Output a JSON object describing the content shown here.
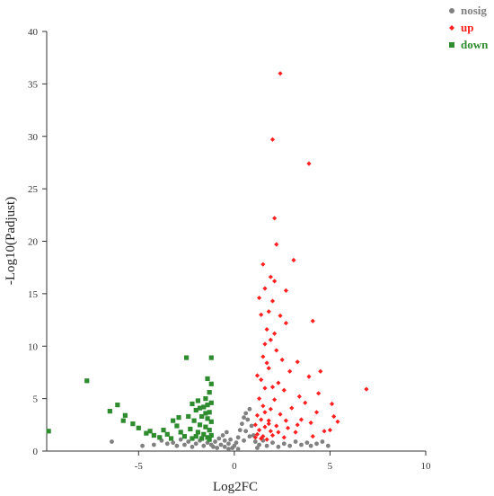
{
  "chart_data": {
    "type": "scatter",
    "title": "",
    "xlabel": "Log2FC",
    "ylabel": "-Log10(Padjust)",
    "xlim": [
      -9.8,
      10
    ],
    "ylim": [
      0,
      40
    ],
    "x_ticks": [
      -5,
      0,
      5,
      10
    ],
    "y_ticks": [
      0,
      5,
      10,
      15,
      20,
      25,
      30,
      35,
      40
    ],
    "grid": false,
    "legend_position": "top-right",
    "series": [
      {
        "name": "nosig",
        "color": "#808080",
        "marker": "circle",
        "points": [
          [
            -6.4,
            0.9
          ],
          [
            -4.8,
            0.5
          ],
          [
            -4.2,
            0.6
          ],
          [
            -3.8,
            1.0
          ],
          [
            -3.5,
            0.7
          ],
          [
            -3.2,
            0.8
          ],
          [
            -3.0,
            0.5
          ],
          [
            -2.8,
            1.1
          ],
          [
            -2.6,
            0.6
          ],
          [
            -2.4,
            0.9
          ],
          [
            -2.2,
            0.4
          ],
          [
            -2.0,
            0.7
          ],
          [
            -1.8,
            1.0
          ],
          [
            -1.6,
            0.5
          ],
          [
            -1.4,
            0.8
          ],
          [
            -1.2,
            0.6
          ],
          [
            -1.0,
            0.9
          ],
          [
            -0.9,
            0.3
          ],
          [
            -0.8,
            1.2
          ],
          [
            -0.7,
            0.6
          ],
          [
            -0.6,
            1.5
          ],
          [
            -0.5,
            0.4
          ],
          [
            -0.4,
            1.8
          ],
          [
            -0.3,
            0.7
          ],
          [
            -0.2,
            1.1
          ],
          [
            -0.1,
            0.3
          ],
          [
            0.0,
            0.5
          ],
          [
            0.1,
            0.8
          ],
          [
            0.2,
            1.3
          ],
          [
            0.3,
            2.0
          ],
          [
            0.4,
            2.6
          ],
          [
            0.5,
            3.2
          ],
          [
            0.6,
            3.6
          ],
          [
            0.7,
            3.0
          ],
          [
            0.8,
            4.0
          ],
          [
            0.9,
            2.4
          ],
          [
            1.0,
            1.5
          ],
          [
            1.1,
            0.9
          ],
          [
            1.3,
            0.6
          ],
          [
            1.5,
            1.0
          ],
          [
            1.7,
            0.5
          ],
          [
            2.0,
            0.8
          ],
          [
            2.3,
            0.4
          ],
          [
            2.6,
            0.7
          ],
          [
            2.9,
            0.5
          ],
          [
            3.2,
            0.9
          ],
          [
            3.5,
            0.6
          ],
          [
            3.8,
            0.8
          ],
          [
            4.0,
            0.5
          ],
          [
            4.3,
            0.7
          ],
          [
            4.6,
            0.9
          ],
          [
            4.9,
            0.5
          ],
          [
            -0.5,
            1.0
          ],
          [
            0.5,
            1.0
          ],
          [
            0.6,
            1.9
          ],
          [
            0.2,
            0.2
          ],
          [
            -0.3,
            0.2
          ],
          [
            0.8,
            1.4
          ],
          [
            -1.1,
            0.4
          ],
          [
            1.2,
            0.3
          ]
        ]
      },
      {
        "name": "up",
        "color": "#ff2020",
        "marker": "diamond",
        "points": [
          [
            2.4,
            36.0
          ],
          [
            2.0,
            29.7
          ],
          [
            3.9,
            27.4
          ],
          [
            2.1,
            22.2
          ],
          [
            2.2,
            19.7
          ],
          [
            1.5,
            17.8
          ],
          [
            3.1,
            18.2
          ],
          [
            1.9,
            16.6
          ],
          [
            2.1,
            16.2
          ],
          [
            1.6,
            15.5
          ],
          [
            2.7,
            15.3
          ],
          [
            1.3,
            14.6
          ],
          [
            2.0,
            14.3
          ],
          [
            1.8,
            13.3
          ],
          [
            1.4,
            13.0
          ],
          [
            2.4,
            12.9
          ],
          [
            4.1,
            12.4
          ],
          [
            2.7,
            12.2
          ],
          [
            1.7,
            11.6
          ],
          [
            2.1,
            11.2
          ],
          [
            1.6,
            10.2
          ],
          [
            1.9,
            10.6
          ],
          [
            2.2,
            9.6
          ],
          [
            1.5,
            9.0
          ],
          [
            2.5,
            8.7
          ],
          [
            1.7,
            8.4
          ],
          [
            3.3,
            8.5
          ],
          [
            1.8,
            7.9
          ],
          [
            2.9,
            7.6
          ],
          [
            4.5,
            7.6
          ],
          [
            1.2,
            7.2
          ],
          [
            3.9,
            7.1
          ],
          [
            1.4,
            6.8
          ],
          [
            2.3,
            6.5
          ],
          [
            2.0,
            6.1
          ],
          [
            1.6,
            6.0
          ],
          [
            2.6,
            5.8
          ],
          [
            4.4,
            5.5
          ],
          [
            3.4,
            5.2
          ],
          [
            1.3,
            5.0
          ],
          [
            2.1,
            4.9
          ],
          [
            3.7,
            4.6
          ],
          [
            5.1,
            4.5
          ],
          [
            1.5,
            4.3
          ],
          [
            1.9,
            4.0
          ],
          [
            3.0,
            4.1
          ],
          [
            6.9,
            5.9
          ],
          [
            4.3,
            3.7
          ],
          [
            1.2,
            3.4
          ],
          [
            2.4,
            3.5
          ],
          [
            5.2,
            3.3
          ],
          [
            1.4,
            3.0
          ],
          [
            1.8,
            2.9
          ],
          [
            3.5,
            3.0
          ],
          [
            4.0,
            2.7
          ],
          [
            5.4,
            2.8
          ],
          [
            1.1,
            2.5
          ],
          [
            1.6,
            2.3
          ],
          [
            2.2,
            2.4
          ],
          [
            2.8,
            2.2
          ],
          [
            1.3,
            2.0
          ],
          [
            1.9,
            1.9
          ],
          [
            3.2,
            1.8
          ],
          [
            4.7,
            1.9
          ],
          [
            1.2,
            1.6
          ],
          [
            1.5,
            1.4
          ],
          [
            2.0,
            1.5
          ],
          [
            2.6,
            1.3
          ],
          [
            1.4,
            1.2
          ],
          [
            1.7,
            1.1
          ],
          [
            5.0,
            2.0
          ],
          [
            4.1,
            1.4
          ],
          [
            1.1,
            1.3
          ],
          [
            2.3,
            1.8
          ],
          [
            1.8,
            2.6
          ],
          [
            1.6,
            3.7
          ],
          [
            2.7,
            2.9
          ],
          [
            3.3,
            2.5
          ]
        ]
      },
      {
        "name": "down",
        "color": "#2e8b2e",
        "marker": "square",
        "points": [
          [
            -9.7,
            1.9
          ],
          [
            -7.7,
            6.7
          ],
          [
            -6.1,
            4.4
          ],
          [
            -6.5,
            3.8
          ],
          [
            -5.7,
            3.4
          ],
          [
            -5.8,
            2.9
          ],
          [
            -5.3,
            2.6
          ],
          [
            -5.0,
            2.2
          ],
          [
            -4.6,
            1.7
          ],
          [
            -4.2,
            1.5
          ],
          [
            -3.9,
            1.3
          ],
          [
            -3.7,
            2.0
          ],
          [
            -3.5,
            1.6
          ],
          [
            -3.3,
            1.2
          ],
          [
            -3.0,
            2.4
          ],
          [
            -2.8,
            1.8
          ],
          [
            -2.6,
            1.4
          ],
          [
            -2.5,
            8.9
          ],
          [
            -1.2,
            8.9
          ],
          [
            -1.4,
            6.9
          ],
          [
            -1.2,
            6.4
          ],
          [
            -1.3,
            5.6
          ],
          [
            -1.5,
            5.0
          ],
          [
            -1.2,
            4.6
          ],
          [
            -1.9,
            4.8
          ],
          [
            -2.2,
            4.5
          ],
          [
            -1.6,
            4.2
          ],
          [
            -2.0,
            3.9
          ],
          [
            -1.3,
            3.7
          ],
          [
            -2.4,
            3.3
          ],
          [
            -1.7,
            3.3
          ],
          [
            -1.4,
            3.1
          ],
          [
            -2.1,
            2.9
          ],
          [
            -1.2,
            2.8
          ],
          [
            -1.8,
            2.5
          ],
          [
            -1.5,
            2.3
          ],
          [
            -2.3,
            2.1
          ],
          [
            -1.3,
            2.0
          ],
          [
            -1.9,
            1.8
          ],
          [
            -1.6,
            1.6
          ],
          [
            -1.2,
            1.5
          ],
          [
            -2.0,
            1.4
          ],
          [
            -1.4,
            1.3
          ],
          [
            -1.7,
            1.2
          ],
          [
            -1.3,
            1.1
          ],
          [
            -2.2,
            1.2
          ],
          [
            -4.4,
            1.9
          ],
          [
            -3.2,
            2.9
          ],
          [
            -2.9,
            3.2
          ],
          [
            -1.5,
            3.6
          ],
          [
            -1.8,
            4.1
          ],
          [
            -1.4,
            4.4
          ]
        ]
      }
    ]
  }
}
